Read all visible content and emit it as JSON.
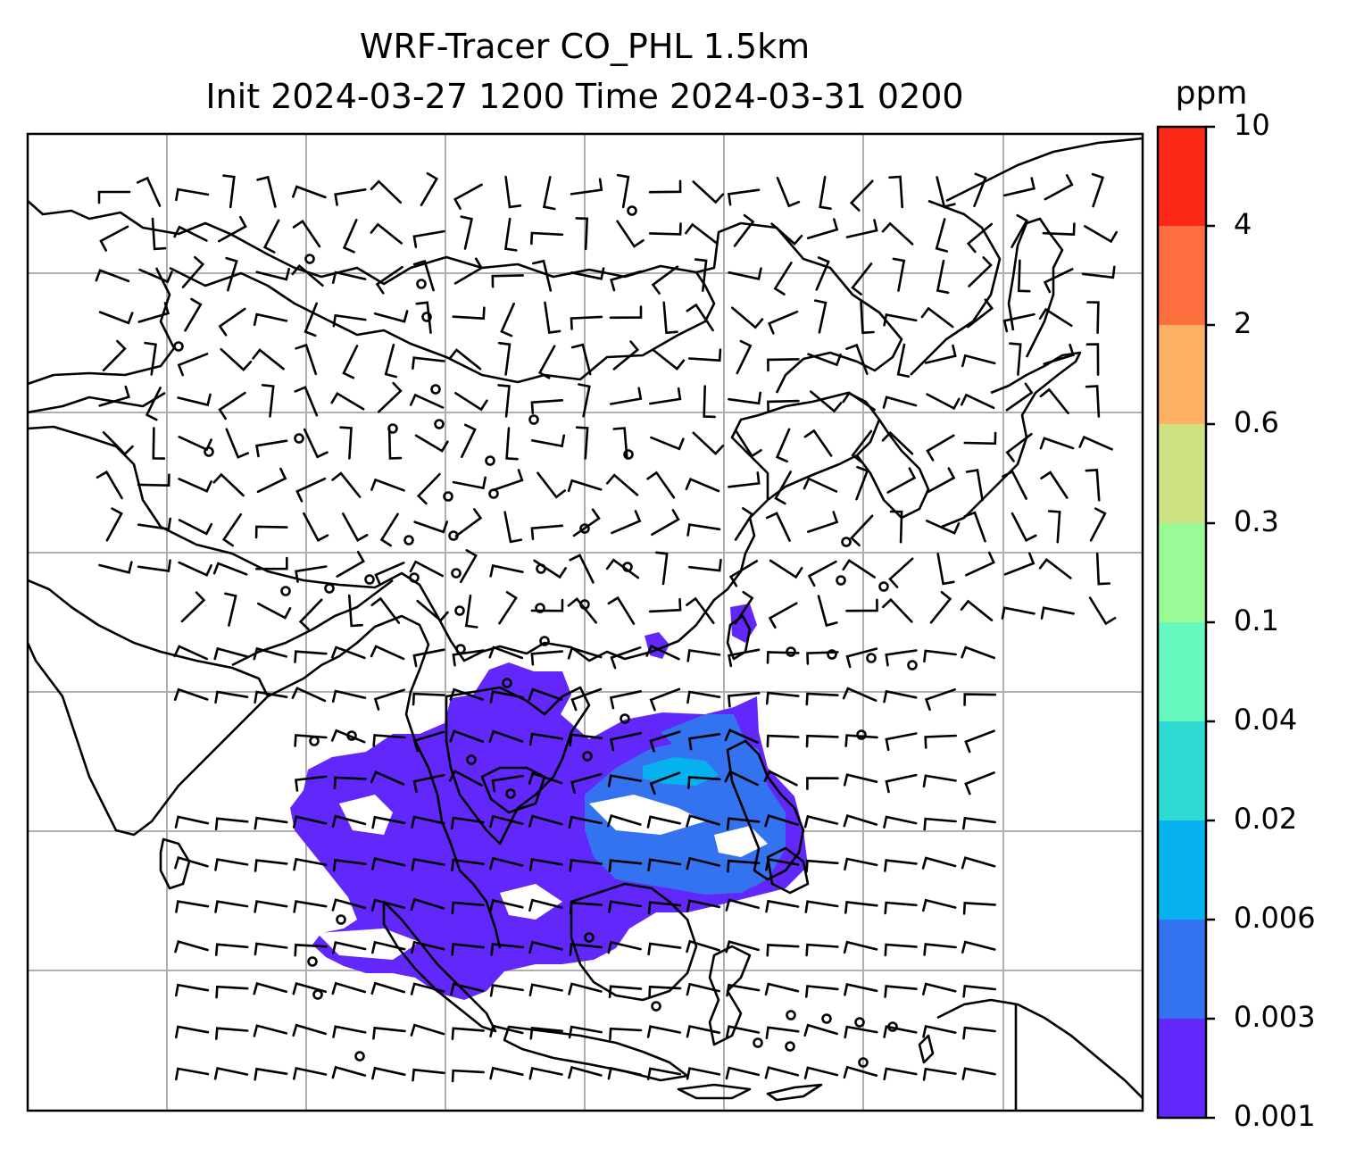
{
  "title": {
    "line1": "WRF-Tracer CO_PHL 1.5km",
    "line2": "Init 2024-03-27 1200 Time 2024-03-31 0200"
  },
  "colorbar": {
    "units": "ppm",
    "ticks": [
      "0.001",
      "0.003",
      "0.006",
      "0.02",
      "0.04",
      "0.1",
      "0.3",
      "0.6",
      "2",
      "4",
      "10"
    ],
    "colors": [
      "#6227fb",
      "#3473f0",
      "#06b2ee",
      "#2edbd3",
      "#66f8bf",
      "#9afa96",
      "#cde283",
      "#feb165",
      "#fe6f3f",
      "#fc2818"
    ]
  },
  "map": {
    "gridlines": true,
    "plume_colors": {
      "low": "#6227fb",
      "mid": "#3473f0",
      "high": "#06b2ee"
    },
    "calm_markers": 44,
    "wind_barbs": "many"
  }
}
